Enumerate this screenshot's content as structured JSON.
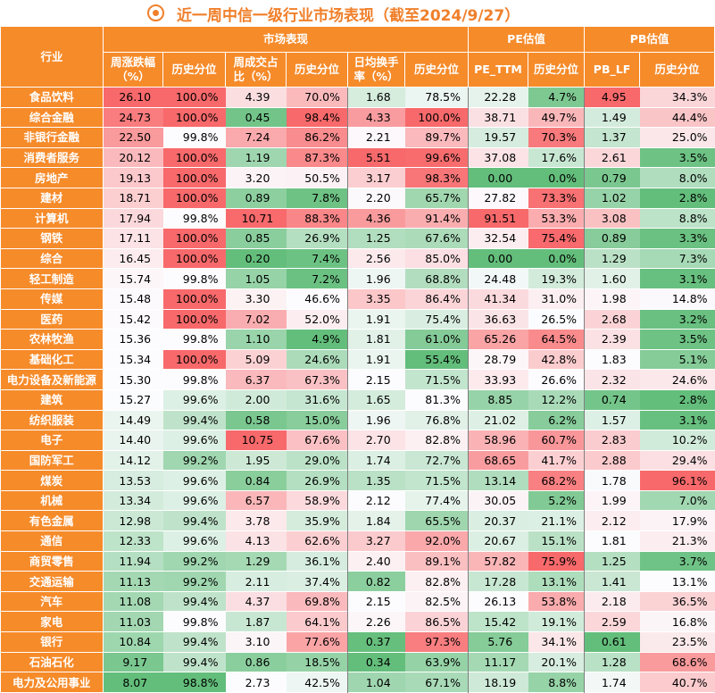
{
  "title": "近一周中信一级行业市场表现（截至2024/9/27）",
  "colors": {
    "header": "#f68b2a",
    "red": "#f8696b",
    "green": "#63be7b",
    "white": "#ffffff"
  },
  "headers": {
    "industry": "行业",
    "group_market": "市场表现",
    "group_pe": "PE估值",
    "group_pb": "PB估值",
    "weekly_change": "周涨跌幅（%）",
    "turnover_share": "周成交占比（%）",
    "daily_turnover": "日均换手率（%）",
    "pe_ttm": "PE_TTM",
    "pb_lf": "PB_LF",
    "hist_pct": "历史分位"
  },
  "rows": [
    [
      "食品饮料",
      "26.10",
      "100.0%",
      "4.39",
      "70.0%",
      "1.68",
      "78.5%",
      "22.28",
      "4.7%",
      "4.95",
      "34.3%"
    ],
    [
      "综合金融",
      "24.73",
      "100.0%",
      "0.45",
      "98.4%",
      "4.33",
      "100.0%",
      "38.71",
      "49.7%",
      "1.49",
      "44.4%"
    ],
    [
      "非银行金融",
      "22.50",
      "99.8%",
      "7.24",
      "86.2%",
      "2.21",
      "89.7%",
      "19.57",
      "70.3%",
      "1.37",
      "25.0%"
    ],
    [
      "消费者服务",
      "20.12",
      "100.0%",
      "1.19",
      "87.3%",
      "5.51",
      "99.6%",
      "37.08",
      "17.6%",
      "2.61",
      "3.5%"
    ],
    [
      "房地产",
      "19.13",
      "100.0%",
      "3.20",
      "50.5%",
      "3.17",
      "98.3%",
      "0.00",
      "0.0%",
      "0.79",
      "8.0%"
    ],
    [
      "建材",
      "18.71",
      "100.0%",
      "0.89",
      "7.8%",
      "2.20",
      "65.7%",
      "27.82",
      "73.3%",
      "1.02",
      "2.8%"
    ],
    [
      "计算机",
      "17.94",
      "99.8%",
      "10.71",
      "88.3%",
      "4.36",
      "91.4%",
      "91.51",
      "53.3%",
      "3.08",
      "8.8%"
    ],
    [
      "钢铁",
      "17.11",
      "100.0%",
      "0.85",
      "26.9%",
      "1.25",
      "67.6%",
      "32.54",
      "75.4%",
      "0.89",
      "3.3%"
    ],
    [
      "综合",
      "16.45",
      "100.0%",
      "0.20",
      "7.4%",
      "2.56",
      "85.0%",
      "0.00",
      "0.0%",
      "1.29",
      "7.3%"
    ],
    [
      "轻工制造",
      "15.74",
      "99.8%",
      "1.05",
      "7.2%",
      "1.96",
      "68.8%",
      "24.48",
      "19.3%",
      "1.60",
      "3.1%"
    ],
    [
      "传媒",
      "15.48",
      "100.0%",
      "3.30",
      "46.6%",
      "3.35",
      "86.4%",
      "41.34",
      "31.0%",
      "1.98",
      "14.8%"
    ],
    [
      "医药",
      "15.42",
      "100.0%",
      "7.02",
      "52.0%",
      "1.91",
      "75.4%",
      "36.63",
      "26.5%",
      "2.68",
      "3.2%"
    ],
    [
      "农林牧渔",
      "15.36",
      "99.8%",
      "1.10",
      "4.9%",
      "1.81",
      "61.0%",
      "65.26",
      "64.5%",
      "2.39",
      "3.5%"
    ],
    [
      "基础化工",
      "15.34",
      "100.0%",
      "5.09",
      "24.6%",
      "1.91",
      "55.4%",
      "28.79",
      "42.8%",
      "1.83",
      "5.1%"
    ],
    [
      "电力设备及新能源",
      "15.30",
      "99.8%",
      "6.37",
      "67.3%",
      "2.15",
      "71.5%",
      "33.93",
      "26.6%",
      "2.32",
      "24.6%"
    ],
    [
      "建筑",
      "15.27",
      "99.6%",
      "2.00",
      "31.6%",
      "1.65",
      "81.3%",
      "8.85",
      "12.2%",
      "0.74",
      "2.8%"
    ],
    [
      "纺织服装",
      "14.49",
      "99.4%",
      "0.58",
      "15.0%",
      "1.96",
      "76.8%",
      "21.02",
      "6.2%",
      "1.57",
      "3.1%"
    ],
    [
      "电子",
      "14.40",
      "99.6%",
      "10.75",
      "67.6%",
      "2.70",
      "82.8%",
      "58.96",
      "60.7%",
      "2.83",
      "10.2%"
    ],
    [
      "国防军工",
      "14.12",
      "99.2%",
      "1.95",
      "29.0%",
      "1.74",
      "72.7%",
      "68.65",
      "41.7%",
      "2.88",
      "29.4%"
    ],
    [
      "煤炭",
      "13.53",
      "99.6%",
      "0.84",
      "26.9%",
      "1.35",
      "71.5%",
      "13.14",
      "68.2%",
      "1.78",
      "96.1%"
    ],
    [
      "机械",
      "13.34",
      "99.6%",
      "6.57",
      "58.9%",
      "2.12",
      "77.4%",
      "30.05",
      "5.2%",
      "1.99",
      "7.0%"
    ],
    [
      "有色金属",
      "12.98",
      "99.4%",
      "3.78",
      "35.9%",
      "1.84",
      "65.5%",
      "20.37",
      "21.1%",
      "2.12",
      "17.9%"
    ],
    [
      "通信",
      "12.33",
      "99.6%",
      "4.13",
      "62.6%",
      "3.27",
      "92.0%",
      "20.67",
      "15.1%",
      "1.81",
      "21.3%"
    ],
    [
      "商贸零售",
      "11.94",
      "99.2%",
      "1.29",
      "36.1%",
      "2.40",
      "89.1%",
      "57.82",
      "75.9%",
      "1.25",
      "3.7%"
    ],
    [
      "交通运输",
      "11.13",
      "99.2%",
      "2.11",
      "37.4%",
      "0.82",
      "82.8%",
      "17.28",
      "13.1%",
      "1.41",
      "13.1%"
    ],
    [
      "汽车",
      "11.08",
      "99.4%",
      "4.37",
      "69.8%",
      "2.15",
      "82.5%",
      "26.13",
      "53.8%",
      "2.18",
      "36.5%"
    ],
    [
      "家电",
      "11.03",
      "99.8%",
      "1.87",
      "64.1%",
      "2.26",
      "86.5%",
      "15.42",
      "19.1%",
      "2.59",
      "16.8%"
    ],
    [
      "银行",
      "10.84",
      "99.4%",
      "3.10",
      "77.6%",
      "0.37",
      "97.3%",
      "5.76",
      "34.1%",
      "0.61",
      "23.5%"
    ],
    [
      "石油石化",
      "9.17",
      "99.4%",
      "0.86",
      "18.5%",
      "0.34",
      "63.9%",
      "11.17",
      "20.1%",
      "1.28",
      "68.6%"
    ],
    [
      "电力及公用事业",
      "8.07",
      "98.8%",
      "2.73",
      "42.5%",
      "1.04",
      "67.1%",
      "18.19",
      "8.8%",
      "1.74",
      "40.7%"
    ]
  ]
}
